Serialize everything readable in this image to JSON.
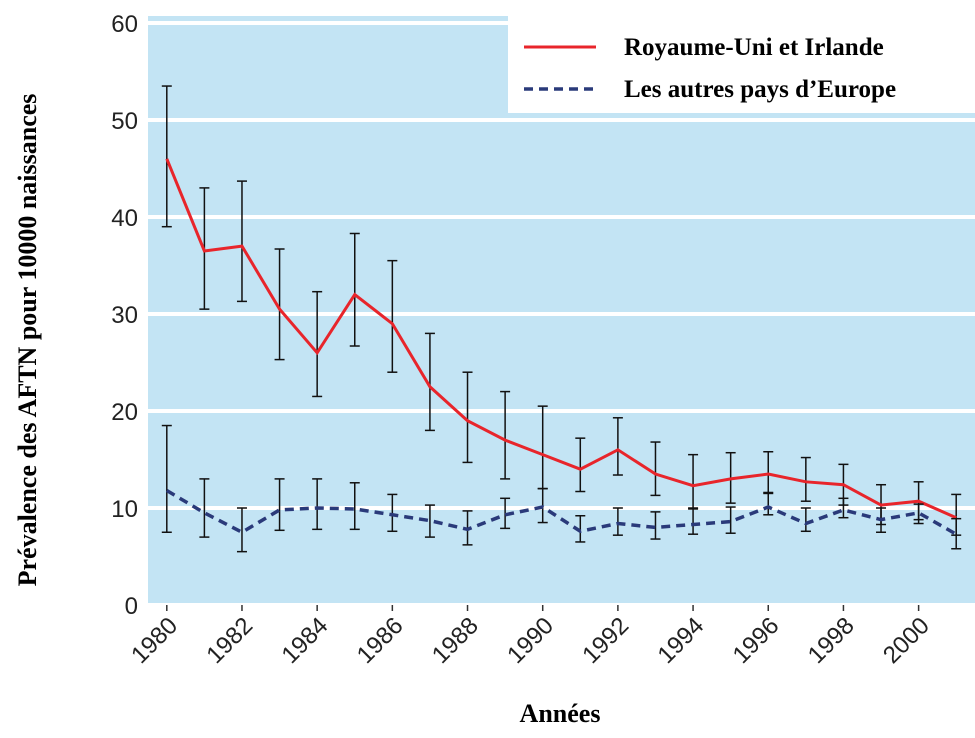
{
  "chart_data": {
    "type": "line",
    "xlabel": "Années",
    "ylabel": "Prévalence des AFTN pour 10000 naissances",
    "x": [
      1980,
      1981,
      1982,
      1983,
      1984,
      1985,
      1986,
      1987,
      1988,
      1989,
      1990,
      1991,
      1992,
      1993,
      1994,
      1995,
      1996,
      1997,
      1998,
      1999,
      2000,
      2001
    ],
    "series": [
      {
        "name": "Royaume-Uni et Irlande",
        "color": "#e8252b",
        "dash": "solid",
        "values": [
          46,
          36.5,
          37,
          30.5,
          26,
          32,
          29,
          22.5,
          19,
          17,
          15.5,
          14,
          16,
          13.5,
          12.3,
          13,
          13.5,
          12.7,
          12.4,
          10.3,
          10.7,
          9
        ],
        "error_low": [
          39,
          30.5,
          31.3,
          25.3,
          21.5,
          26.7,
          24,
          18,
          14.7,
          13,
          12,
          11.7,
          13.4,
          11.3,
          10,
          10.5,
          11.5,
          10.7,
          10.3,
          8.3,
          8.8,
          7.2
        ],
        "error_high": [
          53.5,
          43,
          43.7,
          36.7,
          32.3,
          38.3,
          35.5,
          28,
          24,
          22,
          20.5,
          17.2,
          19.3,
          16.8,
          15.5,
          15.7,
          15.8,
          15.2,
          14.5,
          12.4,
          12.7,
          11.4
        ]
      },
      {
        "name": "Les autres pays d’Europe",
        "color": "#2a3a7a",
        "dash": "dashed",
        "values": [
          11.8,
          9.5,
          7.5,
          9.8,
          10,
          9.9,
          9.3,
          8.7,
          7.8,
          9.3,
          10.1,
          7.6,
          8.4,
          8,
          8.3,
          8.6,
          10.1,
          8.4,
          9.8,
          8.8,
          9.5,
          7.3
        ],
        "error_low": [
          7.5,
          7,
          5.5,
          7.7,
          7.8,
          7.8,
          7.6,
          7,
          6.2,
          7.9,
          8.5,
          6.5,
          7.2,
          6.8,
          7.3,
          7.4,
          9.3,
          7.6,
          9,
          7.5,
          8.4,
          5.8
        ],
        "error_high": [
          18.5,
          13,
          10,
          13,
          13,
          12.6,
          11.4,
          10.3,
          9.7,
          11,
          12,
          9.2,
          10,
          9.6,
          9.9,
          10.1,
          11.6,
          10,
          11,
          10,
          10.4,
          8.9
        ]
      }
    ],
    "xlim": [
      1979.5,
      2001.5
    ],
    "xticks": [
      1980,
      1982,
      1984,
      1986,
      1988,
      1990,
      1992,
      1994,
      1996,
      1998,
      2000
    ],
    "ylim": [
      0,
      60
    ],
    "yticks": [
      0,
      10,
      20,
      30,
      40,
      50,
      60
    ],
    "grid": true,
    "legend": "upper right",
    "background": "#c3e4f4"
  }
}
